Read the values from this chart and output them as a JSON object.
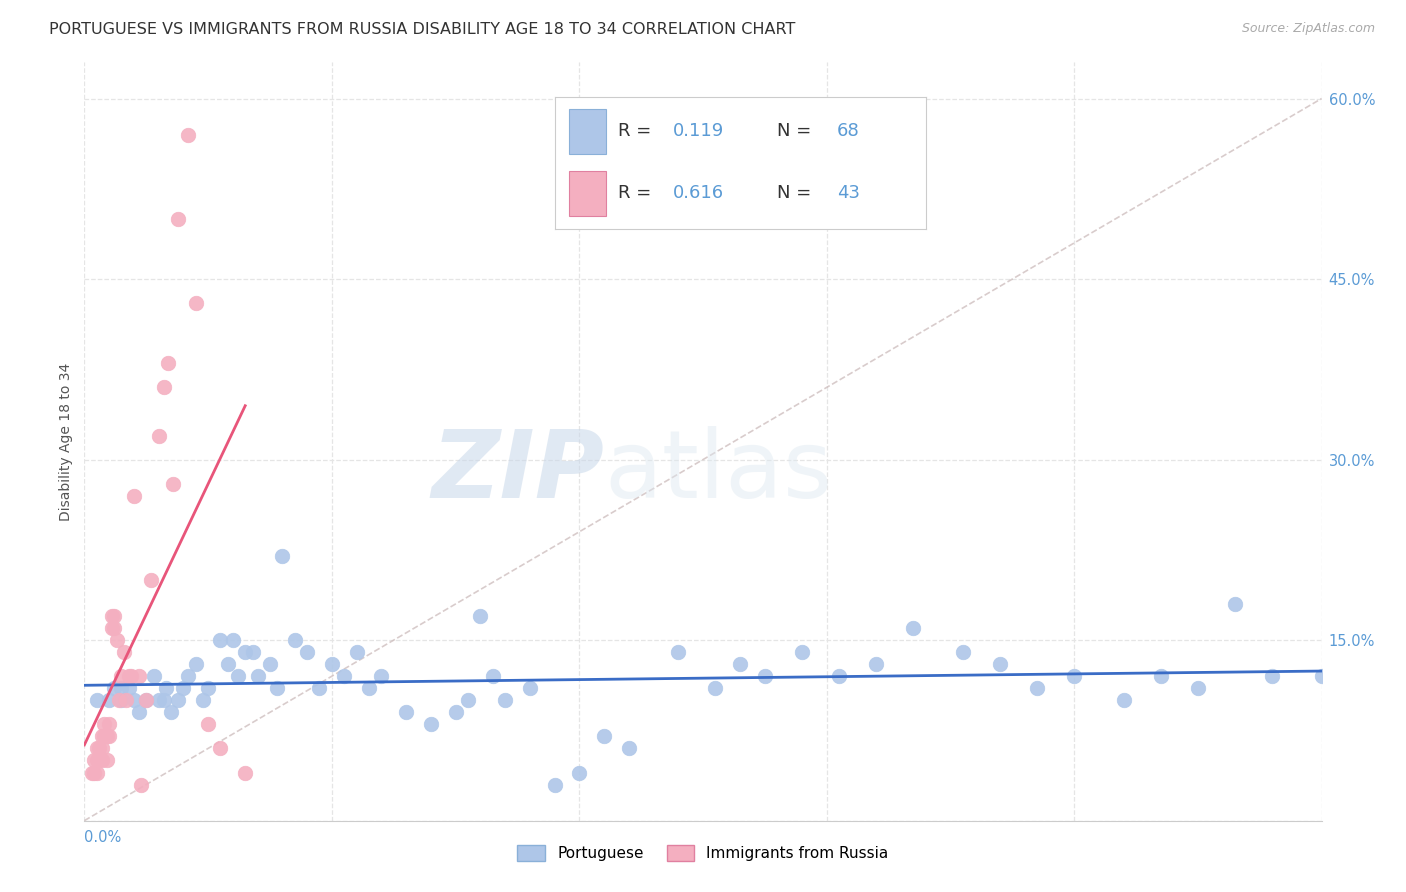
{
  "title": "PORTUGUESE VS IMMIGRANTS FROM RUSSIA DISABILITY AGE 18 TO 34 CORRELATION CHART",
  "source": "Source: ZipAtlas.com",
  "ylabel": "Disability Age 18 to 34",
  "xlim": [
    0.0,
    0.5
  ],
  "ylim": [
    0.0,
    0.63
  ],
  "yticks": [
    0.0,
    0.15,
    0.3,
    0.45,
    0.6
  ],
  "xtick_positions": [
    0.0,
    0.1,
    0.2,
    0.3,
    0.4,
    0.5
  ],
  "portuguese_color": "#aec6e8",
  "russia_color": "#f4afc0",
  "portuguese_line_color": "#3a6cc6",
  "russia_line_color": "#e8557a",
  "diag_line_color": "#ccbbbb",
  "background_color": "#ffffff",
  "grid_color": "#e5e5e5",
  "portuguese_x": [
    0.005,
    0.01,
    0.012,
    0.015,
    0.015,
    0.018,
    0.02,
    0.022,
    0.025,
    0.028,
    0.03,
    0.032,
    0.033,
    0.035,
    0.038,
    0.04,
    0.042,
    0.045,
    0.048,
    0.05,
    0.055,
    0.058,
    0.06,
    0.062,
    0.065,
    0.068,
    0.07,
    0.075,
    0.078,
    0.08,
    0.085,
    0.09,
    0.095,
    0.1,
    0.105,
    0.11,
    0.115,
    0.12,
    0.13,
    0.14,
    0.15,
    0.155,
    0.16,
    0.165,
    0.17,
    0.18,
    0.19,
    0.2,
    0.21,
    0.22,
    0.24,
    0.255,
    0.265,
    0.275,
    0.29,
    0.305,
    0.32,
    0.335,
    0.355,
    0.37,
    0.385,
    0.4,
    0.42,
    0.435,
    0.45,
    0.465,
    0.48,
    0.5
  ],
  "portuguese_y": [
    0.1,
    0.1,
    0.11,
    0.1,
    0.11,
    0.11,
    0.1,
    0.09,
    0.1,
    0.12,
    0.1,
    0.1,
    0.11,
    0.09,
    0.1,
    0.11,
    0.12,
    0.13,
    0.1,
    0.11,
    0.15,
    0.13,
    0.15,
    0.12,
    0.14,
    0.14,
    0.12,
    0.13,
    0.11,
    0.22,
    0.15,
    0.14,
    0.11,
    0.13,
    0.12,
    0.14,
    0.11,
    0.12,
    0.09,
    0.08,
    0.09,
    0.1,
    0.17,
    0.12,
    0.1,
    0.11,
    0.03,
    0.04,
    0.07,
    0.06,
    0.14,
    0.11,
    0.13,
    0.12,
    0.14,
    0.12,
    0.13,
    0.16,
    0.14,
    0.13,
    0.11,
    0.12,
    0.1,
    0.12,
    0.11,
    0.18,
    0.12,
    0.12
  ],
  "russia_x": [
    0.003,
    0.004,
    0.004,
    0.005,
    0.005,
    0.005,
    0.006,
    0.006,
    0.007,
    0.007,
    0.007,
    0.008,
    0.008,
    0.009,
    0.009,
    0.01,
    0.01,
    0.011,
    0.011,
    0.012,
    0.012,
    0.013,
    0.014,
    0.015,
    0.016,
    0.017,
    0.018,
    0.019,
    0.02,
    0.022,
    0.023,
    0.025,
    0.027,
    0.03,
    0.032,
    0.034,
    0.036,
    0.038,
    0.042,
    0.045,
    0.05,
    0.055,
    0.065
  ],
  "russia_y": [
    0.04,
    0.04,
    0.05,
    0.04,
    0.05,
    0.06,
    0.05,
    0.06,
    0.05,
    0.06,
    0.07,
    0.07,
    0.08,
    0.05,
    0.07,
    0.07,
    0.08,
    0.16,
    0.17,
    0.16,
    0.17,
    0.15,
    0.1,
    0.12,
    0.14,
    0.1,
    0.12,
    0.12,
    0.27,
    0.12,
    0.03,
    0.1,
    0.2,
    0.32,
    0.36,
    0.38,
    0.28,
    0.5,
    0.57,
    0.43,
    0.08,
    0.06,
    0.04
  ],
  "watermark_zip": "ZIP",
  "watermark_atlas": "atlas",
  "title_fontsize": 11.5,
  "legend_fontsize": 13
}
